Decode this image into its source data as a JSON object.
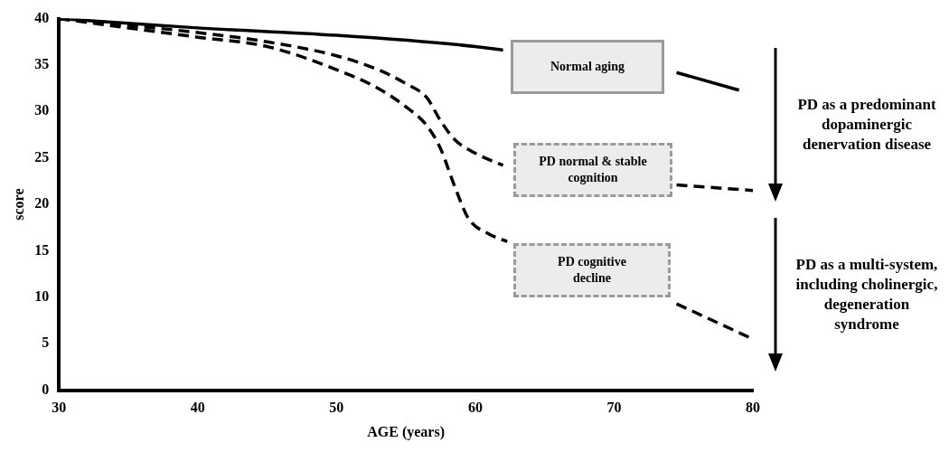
{
  "chart_data": {
    "type": "line",
    "xlabel": "AGE (years)",
    "ylabel": "score",
    "xlim": [
      30,
      80
    ],
    "xticks": [
      30,
      40,
      50,
      60,
      70,
      80
    ],
    "ylim": [
      0,
      40
    ],
    "yticks": [
      0,
      5,
      10,
      15,
      20,
      25,
      30,
      35,
      40
    ],
    "grid": false,
    "legend": false,
    "marker": "none",
    "series": [
      {
        "color": "#000000",
        "line_style": "solid",
        "x": [
          30,
          40,
          50,
          60,
          62,
          65,
          70,
          74.5,
          79
        ],
        "values": [
          40,
          39,
          38.2,
          37,
          36.6,
          null,
          null,
          34.2,
          32.3
        ]
      },
      {
        "color": "#000000",
        "line_style": "dashed",
        "x": [
          30,
          40,
          45,
          50,
          53,
          55,
          56.5,
          57.5,
          58.5,
          60,
          62,
          65,
          70,
          74.5,
          80
        ],
        "values": [
          40,
          38.5,
          37.5,
          36,
          34.5,
          33,
          31.5,
          29,
          27,
          25.5,
          24.2,
          null,
          null,
          22.1,
          21.5
        ]
      },
      {
        "color": "#000000",
        "line_style": "dashed",
        "x": [
          30,
          40,
          45,
          50,
          53,
          55,
          56.5,
          57.5,
          58.5,
          59.5,
          61,
          62.3,
          65,
          70,
          74.5,
          80
        ],
        "values": [
          40,
          38,
          37,
          34.5,
          32.5,
          30.5,
          28.5,
          26,
          22,
          18.5,
          16.8,
          16,
          null,
          null,
          9.3,
          5.5
        ]
      }
    ],
    "annotations": [
      "Normal aging",
      "PD normal & stable cognition",
      "PD cognitive decline",
      "PD as a predominant dopaminergic denervation disease",
      "PD as a multi-system, including cholinergic, degeneration syndrome"
    ]
  }
}
